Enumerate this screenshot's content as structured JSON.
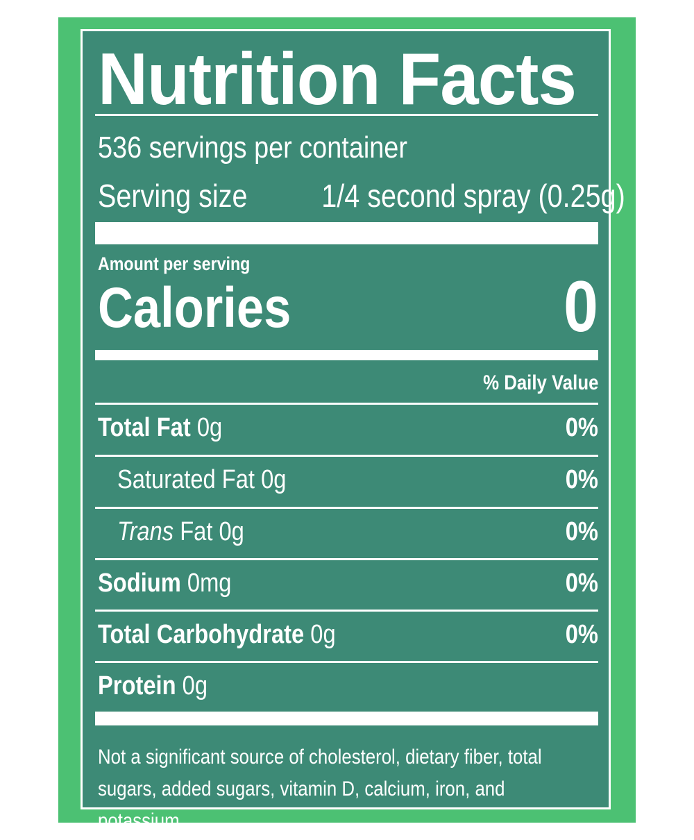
{
  "label": {
    "title": "Nutrition Facts",
    "servings_per_container": "536 servings per container",
    "serving_size_label": "Serving size",
    "serving_size_value": "1/4 second spray (0.25g)",
    "amount_per_serving": "Amount per serving",
    "calories_label": "Calories",
    "calories_value": "0",
    "daily_value_header": "% Daily Value",
    "nutrients": [
      {
        "name": "Total Fat",
        "amount": "0g",
        "dv": "0%"
      },
      {
        "name": "Saturated Fat",
        "amount": "0g",
        "dv": "0%"
      },
      {
        "name_italic": "Trans",
        "name": "Fat",
        "amount": "0g",
        "dv": "0%"
      },
      {
        "name": "Sodium",
        "amount": "0mg",
        "dv": "0%"
      },
      {
        "name": "Total Carbohydrate",
        "amount": "0g",
        "dv": "0%"
      },
      {
        "name": "Protein",
        "amount": "0g"
      }
    ],
    "footnote_line1": "Not a significant source of cholesterol, dietary fiber, total",
    "footnote_line2": "sugars, added sugars, vitamin D, calcium, iron, and potassium."
  },
  "colors": {
    "outer_border": "#4cc173",
    "panel_background": "#3d8a76",
    "text": "#ffffff"
  }
}
